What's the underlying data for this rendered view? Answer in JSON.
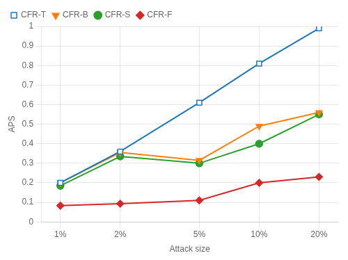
{
  "chart_data": {
    "type": "line",
    "xlabel": "Attack size",
    "ylabel": "APS",
    "x": [
      1,
      2,
      5,
      10,
      20
    ],
    "xticks": [
      {
        "value": 1,
        "label": "1%"
      },
      {
        "value": 2,
        "label": "2%"
      },
      {
        "value": 5,
        "label": "5%"
      },
      {
        "value": 10,
        "label": "10%"
      },
      {
        "value": 20,
        "label": "20%"
      }
    ],
    "xlim": [
      0.8,
      25
    ],
    "log": "x",
    "ylim": [
      0.0,
      1.0
    ],
    "yticks": [
      0,
      0.1,
      0.2,
      0.3,
      0.4,
      0.5,
      0.6,
      0.7,
      0.8,
      0.9,
      1
    ],
    "grid": true,
    "legend": "upper left",
    "series": [
      {
        "name": "CFR-T",
        "color": "#1f77b4",
        "marker": "open_square",
        "values": [
          0.2,
          0.36,
          0.61,
          0.81,
          0.99
        ]
      },
      {
        "name": "CFR-B",
        "color": "#ff7f0e",
        "marker": "triangle_down",
        "values": [
          0.2,
          0.355,
          0.315,
          0.49,
          0.56
        ]
      },
      {
        "name": "CFR-S",
        "color": "#2ca02c",
        "marker": "circle",
        "values": [
          0.185,
          0.335,
          0.3,
          0.4,
          0.55
        ]
      },
      {
        "name": "CFR-F",
        "color": "#d62728",
        "marker": "diamond",
        "values": [
          0.083,
          0.093,
          0.11,
          0.2,
          0.23
        ]
      }
    ]
  }
}
